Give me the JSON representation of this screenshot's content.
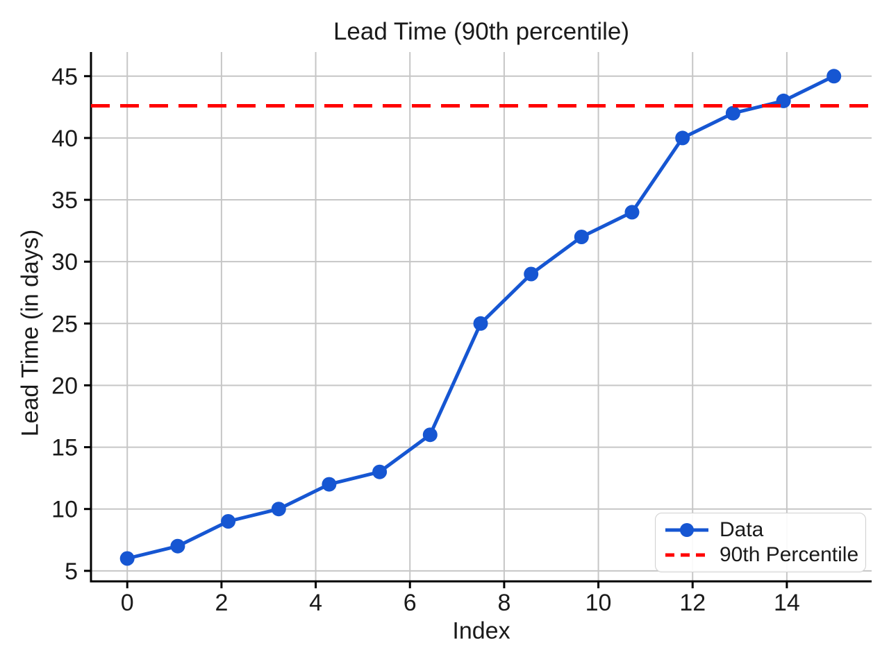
{
  "chart_data": {
    "type": "line",
    "title": "Lead Time (90th percentile)",
    "xlabel": "Index",
    "ylabel": "Lead Time (in days)",
    "x": [
      0,
      1.0714,
      2.1429,
      3.2143,
      4.2857,
      5.3571,
      6.4286,
      7.5,
      8.5714,
      9.6429,
      10.7143,
      11.7857,
      12.8571,
      13.9286,
      15
    ],
    "series": [
      {
        "name": "Data",
        "values": [
          6,
          7,
          9,
          10,
          12,
          13,
          16,
          25,
          29,
          32,
          34,
          40,
          42,
          43,
          45
        ],
        "color": "#1656d2",
        "marker": "circle",
        "line_style": "solid"
      }
    ],
    "reference_lines": [
      {
        "name": "90th Percentile",
        "value": 42.6,
        "color": "#ff0000",
        "line_style": "dashed",
        "orientation": "horizontal"
      }
    ],
    "xticks": [
      0,
      2,
      4,
      6,
      8,
      10,
      12,
      14
    ],
    "yticks": [
      5,
      10,
      15,
      20,
      25,
      30,
      35,
      40,
      45
    ],
    "xlim": [
      -0.77,
      15.8
    ],
    "ylim": [
      4.15,
      46.95
    ],
    "grid": true,
    "legend": {
      "position": "lower right",
      "entries": [
        "Data",
        "90th Percentile"
      ]
    }
  },
  "colors": {
    "grid": "#c6c6c6",
    "spine": "#000000",
    "text": "#1a1a1a",
    "legend_border": "#cfcfcf",
    "background": "#ffffff"
  }
}
